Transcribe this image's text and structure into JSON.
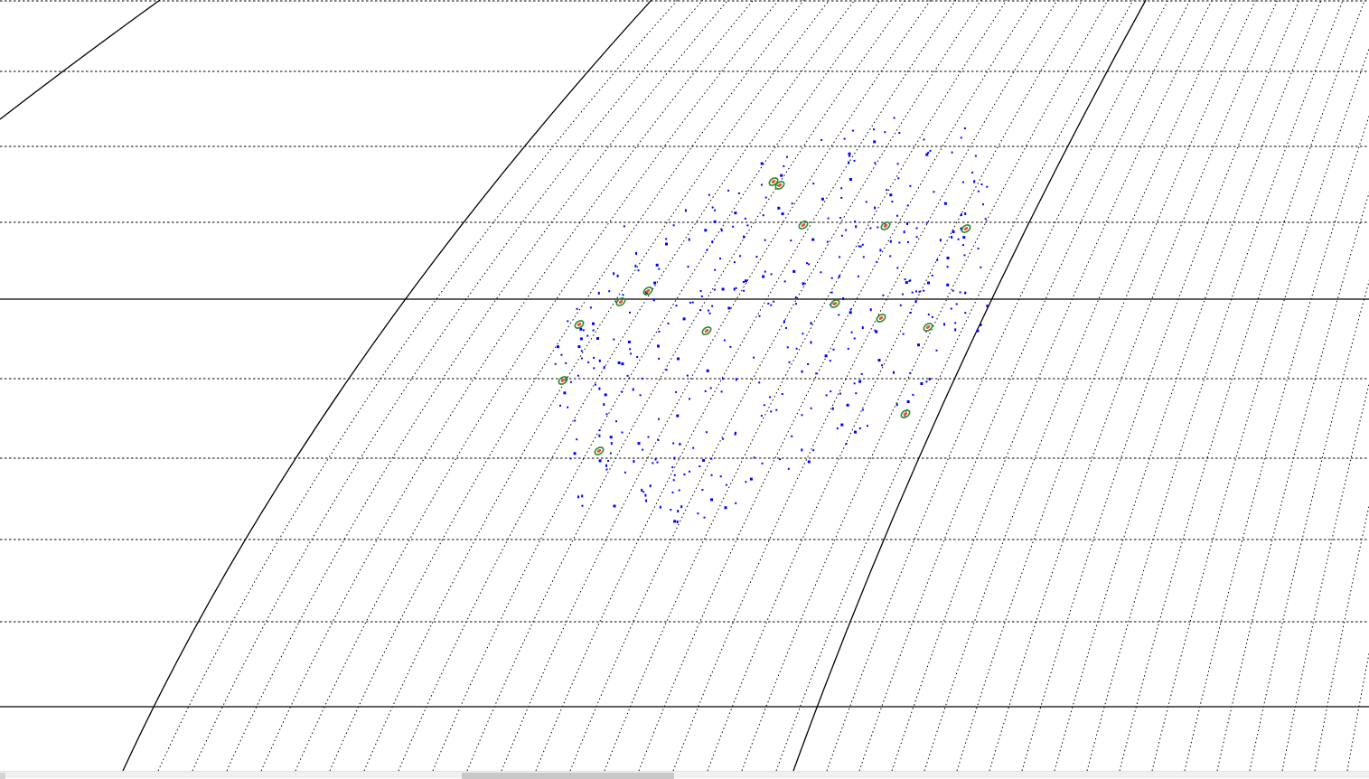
{
  "view": {
    "background_color": "#ffffff",
    "grid_color": "#000000",
    "star_color": "#0000ff",
    "marker_fill_color": "#e8503a",
    "marker_ring_color": "#2a8a2a"
  },
  "scrollbar": {
    "orientation": "horizontal",
    "position_fraction": 0.337,
    "visible_fraction": 0.155
  }
}
